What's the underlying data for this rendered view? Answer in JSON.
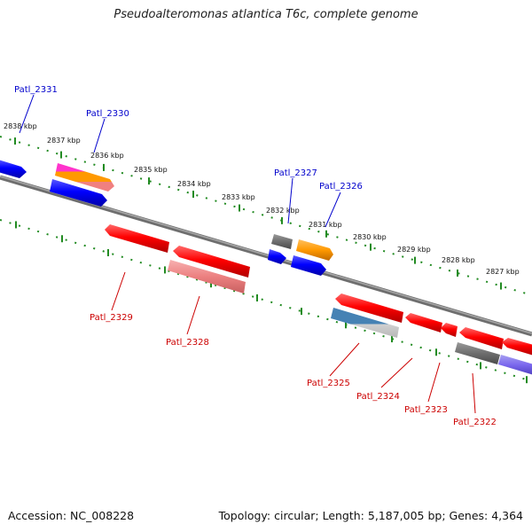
{
  "title": "Pseudoalteromonas atlantica T6c, complete genome",
  "footer": {
    "accession": "Accession: NC_008228",
    "summary": "Topology: circular; Length: 5,187,005 bp; Genes: 4,364"
  },
  "colors": {
    "forward_label": "#0000cc",
    "reverse_label": "#cc0000",
    "backbone": "#808080",
    "ticks": "#228b22"
  },
  "ruler": [
    {
      "label": "2838 kbp"
    },
    {
      "label": "2837 kbp"
    },
    {
      "label": "2836 kbp"
    },
    {
      "label": "2835 kbp"
    },
    {
      "label": "2834 kbp"
    },
    {
      "label": "2833 kbp"
    },
    {
      "label": "2832 kbp"
    },
    {
      "label": "2831 kbp"
    },
    {
      "label": "2830 kbp"
    },
    {
      "label": "2829 kbp"
    },
    {
      "label": "2828 kbp"
    },
    {
      "label": "2827 kbp"
    }
  ],
  "labels": {
    "forward": [
      "Patl_2331",
      "Patl_2330",
      "Patl_2327",
      "Patl_2326"
    ],
    "reverse": [
      "Patl_2329",
      "Patl_2328",
      "Patl_2325",
      "Patl_2324",
      "Patl_2323",
      "Patl_2322"
    ]
  }
}
